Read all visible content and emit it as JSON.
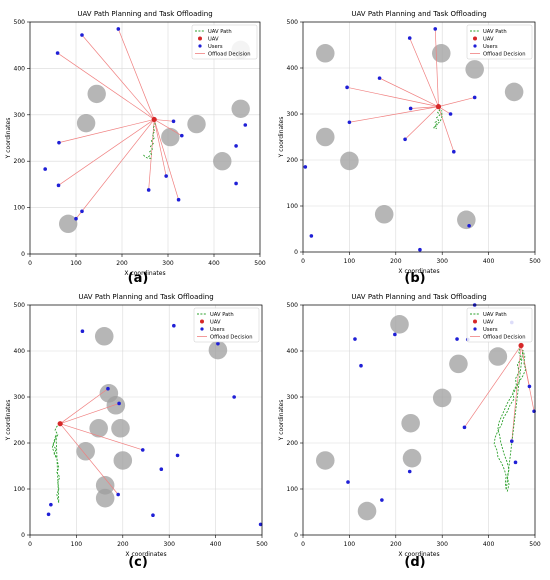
{
  "figure": {
    "panel_labels": [
      "(a)",
      "(b)",
      "(c)",
      "(d)"
    ]
  },
  "colors": {
    "obstacle": "#9e9e9e",
    "path": "#2ca02c",
    "uav": "#d62728",
    "users": "#1f1fd6",
    "offload": "#f08080",
    "grid": "#d9d9d9"
  },
  "chart_data": [
    {
      "type": "scatter",
      "title": "UAV Path Planning and Task Offloading",
      "xlabel": "X coordinates",
      "ylabel": "Y coordinates",
      "xlim": [
        0,
        500
      ],
      "ylim": [
        0,
        500
      ],
      "xticks": [
        "0",
        "100",
        "200",
        "300",
        "400",
        "500"
      ],
      "yticks": [
        "0",
        "100",
        "200",
        "300",
        "400",
        "500"
      ],
      "grid": true,
      "legend_position": "top-right",
      "legend": [
        "UAV Path",
        "UAV",
        "Users",
        "Offload Decision"
      ],
      "obstacles": [
        [
          145,
          345
        ],
        [
          122,
          282
        ],
        [
          305,
          252
        ],
        [
          362,
          280
        ],
        [
          418,
          200
        ],
        [
          458,
          313
        ],
        [
          458,
          440
        ],
        [
          83,
          65
        ]
      ],
      "uav": [
        270,
        290
      ],
      "path": [
        [
          270,
          290
        ],
        [
          272,
          280
        ],
        [
          268,
          272
        ],
        [
          271,
          264
        ],
        [
          266,
          258
        ],
        [
          270,
          250
        ],
        [
          264,
          244
        ],
        [
          268,
          238
        ],
        [
          262,
          232
        ],
        [
          266,
          226
        ],
        [
          260,
          220
        ],
        [
          264,
          215
        ],
        [
          258,
          210
        ],
        [
          262,
          206
        ],
        [
          255,
          207
        ],
        [
          250,
          210
        ],
        [
          246,
          214
        ]
      ],
      "users": [
        [
          113,
          472
        ],
        [
          60,
          433
        ],
        [
          192,
          485
        ],
        [
          312,
          286
        ],
        [
          330,
          255
        ],
        [
          448,
          233
        ],
        [
          468,
          278
        ],
        [
          448,
          152
        ],
        [
          323,
          117
        ],
        [
          296,
          168
        ],
        [
          258,
          138
        ],
        [
          33,
          183
        ],
        [
          63,
          240
        ],
        [
          62,
          148
        ],
        [
          113,
          92
        ],
        [
          100,
          76
        ]
      ],
      "offloads": [
        [
          113,
          472
        ],
        [
          60,
          433
        ],
        [
          192,
          485
        ],
        [
          312,
          286
        ],
        [
          330,
          255
        ],
        [
          323,
          117
        ],
        [
          296,
          168
        ],
        [
          258,
          138
        ],
        [
          63,
          240
        ],
        [
          62,
          148
        ],
        [
          100,
          76
        ]
      ]
    },
    {
      "type": "scatter",
      "title": "UAV Path Planning and Task Offloading",
      "xlabel": "X coordinates",
      "ylabel": "Y coordinates",
      "xlim": [
        0,
        500
      ],
      "ylim": [
        0,
        500
      ],
      "xticks": [
        "0",
        "100",
        "200",
        "300",
        "400",
        "500"
      ],
      "yticks": [
        "0",
        "100",
        "200",
        "300",
        "400",
        "500"
      ],
      "grid": true,
      "legend_position": "top-right",
      "legend": [
        "UAV Path",
        "UAV",
        "Users",
        "Offload Decision"
      ],
      "obstacles": [
        [
          48,
          432
        ],
        [
          298,
          432
        ],
        [
          370,
          397
        ],
        [
          455,
          348
        ],
        [
          48,
          250
        ],
        [
          100,
          198
        ],
        [
          175,
          82
        ],
        [
          352,
          70
        ]
      ],
      "uav": [
        292,
        316
      ],
      "path": [
        [
          292,
          316
        ],
        [
          296,
          310
        ],
        [
          290,
          304
        ],
        [
          295,
          298
        ],
        [
          288,
          292
        ],
        [
          292,
          286
        ],
        [
          285,
          282
        ],
        [
          290,
          276
        ],
        [
          284,
          272
        ],
        [
          288,
          268
        ],
        [
          282,
          270
        ],
        [
          286,
          276
        ],
        [
          296,
          284
        ],
        [
          300,
          296
        ],
        [
          298,
          308
        ]
      ],
      "users": [
        [
          230,
          465
        ],
        [
          285,
          485
        ],
        [
          165,
          378
        ],
        [
          95,
          358
        ],
        [
          370,
          336
        ],
        [
          100,
          282
        ],
        [
          232,
          312
        ],
        [
          318,
          300
        ],
        [
          220,
          245
        ],
        [
          325,
          218
        ],
        [
          5,
          185
        ],
        [
          18,
          35
        ],
        [
          252,
          5
        ],
        [
          358,
          57
        ]
      ],
      "offloads": [
        [
          230,
          465
        ],
        [
          285,
          485
        ],
        [
          165,
          378
        ],
        [
          95,
          358
        ],
        [
          370,
          336
        ],
        [
          100,
          282
        ],
        [
          232,
          312
        ],
        [
          318,
          300
        ],
        [
          220,
          245
        ],
        [
          325,
          218
        ]
      ]
    },
    {
      "type": "scatter",
      "title": "UAV Path Planning and Task Offloading",
      "xlabel": "X coordinates",
      "ylabel": "Y coordinates",
      "xlim": [
        0,
        500
      ],
      "ylim": [
        0,
        500
      ],
      "xticks": [
        "0",
        "100",
        "200",
        "300",
        "400",
        "500"
      ],
      "yticks": [
        "0",
        "100",
        "200",
        "300",
        "400",
        "500"
      ],
      "grid": true,
      "legend_position": "top-right",
      "legend": [
        "UAV Path",
        "UAV",
        "Users",
        "Offload Decision"
      ],
      "obstacles": [
        [
          160,
          432
        ],
        [
          405,
          402
        ],
        [
          170,
          308
        ],
        [
          185,
          282
        ],
        [
          148,
          232
        ],
        [
          195,
          232
        ],
        [
          120,
          182
        ],
        [
          200,
          162
        ],
        [
          162,
          108
        ],
        [
          162,
          80
        ]
      ],
      "uav": [
        65,
        242
      ],
      "path": [
        [
          65,
          242
        ],
        [
          58,
          236
        ],
        [
          54,
          228
        ],
        [
          60,
          218
        ],
        [
          55,
          208
        ],
        [
          50,
          196
        ],
        [
          56,
          186
        ],
        [
          52,
          176
        ],
        [
          58,
          166
        ],
        [
          60,
          156
        ],
        [
          62,
          146
        ],
        [
          58,
          136
        ],
        [
          64,
          126
        ],
        [
          60,
          114
        ],
        [
          62,
          100
        ],
        [
          58,
          88
        ],
        [
          60,
          78
        ],
        [
          62,
          70
        ],
        [
          56,
          218
        ],
        [
          52,
          204
        ],
        [
          48,
          190
        ],
        [
          52,
          180
        ],
        [
          56,
          170
        ]
      ],
      "users": [
        [
          113,
          443
        ],
        [
          310,
          455
        ],
        [
          405,
          416
        ],
        [
          168,
          318
        ],
        [
          192,
          286
        ],
        [
          440,
          300
        ],
        [
          243,
          185
        ],
        [
          318,
          173
        ],
        [
          283,
          143
        ],
        [
          190,
          88
        ],
        [
          265,
          43
        ],
        [
          45,
          66
        ],
        [
          40,
          45
        ],
        [
          497,
          23
        ]
      ],
      "offloads": [
        [
          168,
          318
        ],
        [
          192,
          286
        ],
        [
          243,
          185
        ],
        [
          190,
          88
        ]
      ]
    },
    {
      "type": "scatter",
      "title": "UAV Path Planning and Task Offloading",
      "xlabel": "X coordinates",
      "ylabel": "Y coordinates",
      "xlim": [
        0,
        500
      ],
      "ylim": [
        0,
        500
      ],
      "xticks": [
        "0",
        "100",
        "200",
        "300",
        "400",
        "500"
      ],
      "yticks": [
        "0",
        "100",
        "200",
        "300",
        "400",
        "500"
      ],
      "grid": true,
      "legend_position": "top-right",
      "legend": [
        "UAV Path",
        "UAV",
        "Users",
        "Offload Decision"
      ],
      "obstacles": [
        [
          208,
          458
        ],
        [
          335,
          372
        ],
        [
          420,
          388
        ],
        [
          232,
          243
        ],
        [
          300,
          298
        ],
        [
          235,
          167
        ],
        [
          48,
          162
        ],
        [
          138,
          52
        ]
      ],
      "uav": [
        470,
        412
      ],
      "path": [
        [
          470,
          412
        ],
        [
          465,
          398
        ],
        [
          470,
          384
        ],
        [
          462,
          370
        ],
        [
          466,
          355
        ],
        [
          458,
          340
        ],
        [
          460,
          325
        ],
        [
          452,
          310
        ],
        [
          455,
          296
        ],
        [
          446,
          282
        ],
        [
          440,
          268
        ],
        [
          432,
          254
        ],
        [
          428,
          240
        ],
        [
          420,
          226
        ],
        [
          414,
          212
        ],
        [
          412,
          198
        ],
        [
          418,
          184
        ],
        [
          420,
          170
        ],
        [
          428,
          156
        ],
        [
          434,
          142
        ],
        [
          438,
          128
        ],
        [
          436,
          114
        ],
        [
          438,
          98
        ],
        [
          474,
          402
        ],
        [
          478,
          388
        ],
        [
          476,
          374
        ],
        [
          480,
          360
        ],
        [
          474,
          346
        ],
        [
          464,
          330
        ],
        [
          458,
          316
        ],
        [
          448,
          300
        ],
        [
          440,
          286
        ],
        [
          434,
          272
        ],
        [
          428,
          258
        ],
        [
          422,
          244
        ],
        [
          420,
          230
        ],
        [
          424,
          216
        ],
        [
          426,
          202
        ],
        [
          430,
          188
        ],
        [
          434,
          174
        ],
        [
          440,
          158
        ],
        [
          444,
          142
        ],
        [
          440,
          126
        ],
        [
          444,
          110
        ],
        [
          440,
          94
        ]
      ],
      "users": [
        [
          112,
          426
        ],
        [
          198,
          436
        ],
        [
          125,
          368
        ],
        [
          332,
          426
        ],
        [
          355,
          425
        ],
        [
          370,
          500
        ],
        [
          450,
          462
        ],
        [
          488,
          323
        ],
        [
          498,
          269
        ],
        [
          348,
          234
        ],
        [
          450,
          204
        ],
        [
          458,
          158
        ],
        [
          230,
          138
        ],
        [
          170,
          76
        ],
        [
          97,
          115
        ]
      ],
      "offloads": [
        [
          450,
          204
        ],
        [
          488,
          323
        ],
        [
          498,
          269
        ],
        [
          348,
          234
        ]
      ]
    }
  ]
}
